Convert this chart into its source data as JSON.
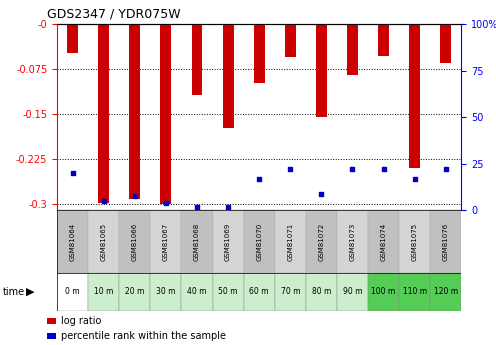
{
  "title": "GDS2347 / YDR075W",
  "samples": [
    "GSM81064",
    "GSM81065",
    "GSM81066",
    "GSM81067",
    "GSM81068",
    "GSM81069",
    "GSM81070",
    "GSM81071",
    "GSM81072",
    "GSM81073",
    "GSM81074",
    "GSM81075",
    "GSM81076"
  ],
  "time_labels": [
    "0 m",
    "10 m",
    "20 m",
    "30 m",
    "40 m",
    "50 m",
    "60 m",
    "70 m",
    "80 m",
    "90 m",
    "100 m",
    "110 m",
    "120 m"
  ],
  "log_ratio": [
    -0.048,
    -0.298,
    -0.291,
    -0.299,
    -0.118,
    -0.172,
    -0.098,
    -0.055,
    -0.155,
    -0.085,
    -0.053,
    -0.24,
    -0.065
  ],
  "percentile_rank": [
    20,
    5,
    8,
    4,
    2,
    2,
    17,
    22,
    9,
    22,
    22,
    17,
    22
  ],
  "bar_color": "#cc0000",
  "dot_color": "#0000cc",
  "ylim_left": [
    -0.31,
    0.0
  ],
  "ylim_right": [
    0,
    100
  ],
  "yticks_left": [
    0.0,
    -0.075,
    -0.15,
    -0.225,
    -0.3
  ],
  "yticks_right": [
    0,
    25,
    50,
    75,
    100
  ],
  "time_bg": [
    "#ffffff",
    "#cceecc",
    "#cceecc",
    "#cceecc",
    "#cceecc",
    "#cceecc",
    "#cceecc",
    "#cceecc",
    "#cceecc",
    "#cceecc",
    "#55cc55",
    "#55cc55",
    "#55cc55"
  ],
  "legend_items": [
    "log ratio",
    "percentile rank within the sample"
  ]
}
